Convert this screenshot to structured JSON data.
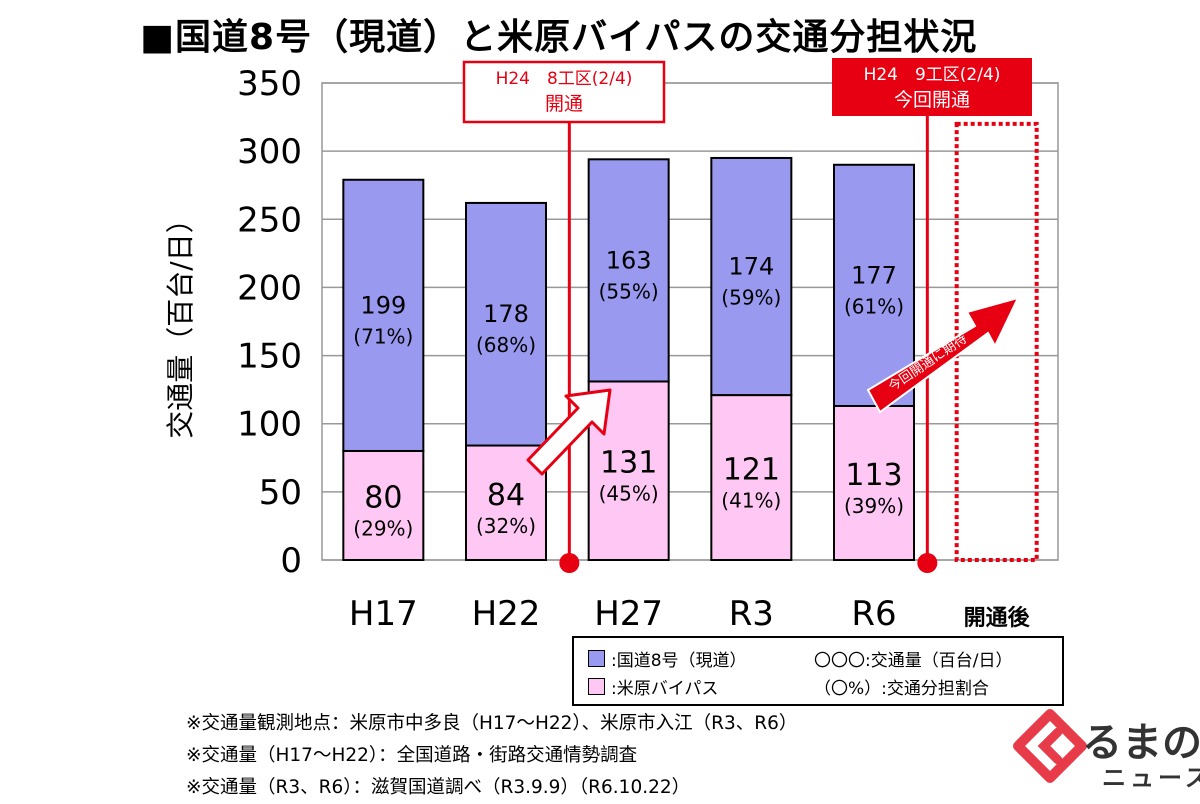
{
  "title": "■国道8号（現道）と米原バイパスの交通分担状況",
  "chart_data": {
    "type": "bar",
    "stacked": true,
    "ylabel": "交通量（百台/日）",
    "ylim": [
      0,
      350
    ],
    "yticks": [
      0,
      50,
      100,
      150,
      200,
      250,
      300,
      350
    ],
    "categories": [
      "H17",
      "H22",
      "H27",
      "R3",
      "R6",
      "開通後"
    ],
    "series": [
      {
        "name": "米原バイパス",
        "color": "#ffc8f4",
        "values": [
          80,
          84,
          131,
          121,
          113,
          null
        ],
        "labels": [
          "(29%)",
          "(32%)",
          "(45%)",
          "(41%)",
          "(39%)",
          ""
        ]
      },
      {
        "name": "国道8号（現道）",
        "color": "#9999f0",
        "values": [
          199,
          178,
          163,
          174,
          177,
          null
        ],
        "labels": [
          "(71%)",
          "(68%)",
          "(55%)",
          "(59%)",
          "(61%)",
          ""
        ]
      }
    ],
    "grid": true,
    "annotations": [
      {
        "line1": "H24　8工区(2/4)",
        "line2": "開通",
        "style": "outline"
      },
      {
        "line1": "H24　9工区(2/4)",
        "line2": "今回開通",
        "style": "filled"
      },
      {
        "text": "今回開通に期待",
        "style": "arrow"
      }
    ]
  },
  "legend": {
    "items": [
      {
        "label": ":国道8号（現道）",
        "color": "#9999f0"
      },
      {
        "label": ":米原バイパス",
        "color": "#ffc8f4"
      }
    ],
    "notes": [
      "〇〇〇:交通量（百台/日）",
      "（〇%）:交通分担割合"
    ]
  },
  "footnotes": [
    "※交通量観測地点：米原市中多良（H17〜H22）、米原市入江（R3、R6）",
    "※交通量（H17〜H22）：全国道路・街路交通情勢調査",
    "※交通量（R3、R6）：滋賀国道調べ（R3.9.9）（R6.10.22）"
  ],
  "logo": {
    "text": "るまの",
    "sub": "ニュース",
    "accent": "#e83b4a"
  },
  "colors": {
    "accent": "#e60012",
    "grid": "#999999"
  }
}
